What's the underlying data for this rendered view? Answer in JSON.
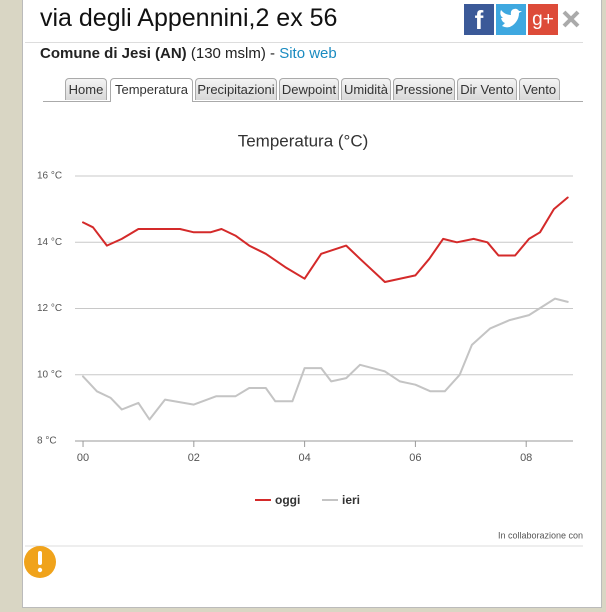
{
  "header": {
    "title": "via degli Appennini,2 ex 56",
    "place": "Comune di Jesi (AN)",
    "altitude": "(130 mslm) -",
    "link": "Sito web"
  },
  "share_icons": {
    "facebook": "f",
    "google": "g+"
  },
  "tabs": [
    "Home",
    "Temperatura",
    "Precipitazioni",
    "Dewpoint",
    "Umidità",
    "Pressione",
    "Dir Vento",
    "Vento"
  ],
  "active_tab": 1,
  "footer": "In collaborazione con",
  "chart_data": {
    "type": "line",
    "title": "Temperatura (°C)",
    "xlim": [
      -0.145,
      8.845
    ],
    "xticks": [
      {
        "value": 0,
        "label": "00"
      },
      {
        "value": 2,
        "label": "02"
      },
      {
        "value": 4,
        "label": "04"
      },
      {
        "value": 6,
        "label": "06"
      },
      {
        "value": 8,
        "label": "08"
      }
    ],
    "ylim": [
      8,
      16
    ],
    "yticks": [
      {
        "value": 8,
        "label": "8 °C"
      },
      {
        "value": 10,
        "label": "10 °C"
      },
      {
        "value": 12,
        "label": "12 °C"
      },
      {
        "value": 14,
        "label": "14 °C"
      },
      {
        "value": 16,
        "label": "16 °C"
      }
    ],
    "grid": true,
    "series": [
      {
        "name": "oggi",
        "color": "#d42a2a",
        "x": [
          0,
          0.18,
          0.43,
          0.7,
          1.0,
          1.75,
          2.0,
          2.3,
          2.5,
          2.75,
          3.0,
          3.3,
          3.65,
          4.0,
          4.3,
          4.75,
          5.0,
          5.45,
          6.0,
          6.25,
          6.5,
          6.75,
          7.05,
          7.3,
          7.5,
          7.8,
          8.05,
          8.25,
          8.5,
          8.75
        ],
        "values": [
          14.6,
          14.45,
          13.9,
          14.1,
          14.4,
          14.4,
          14.3,
          14.3,
          14.4,
          14.2,
          13.9,
          13.65,
          13.25,
          12.9,
          13.65,
          13.9,
          13.5,
          12.8,
          13.0,
          13.5,
          14.1,
          14.0,
          14.1,
          14.0,
          13.6,
          13.6,
          14.1,
          14.3,
          15.0,
          15.35
        ]
      },
      {
        "name": "ieri",
        "color": "#c4c4c4",
        "x": [
          0,
          0.25,
          0.5,
          0.7,
          1.0,
          1.2,
          1.48,
          2.0,
          2.4,
          2.75,
          3.0,
          3.3,
          3.47,
          3.78,
          4.0,
          4.3,
          4.48,
          4.75,
          5.0,
          5.45,
          5.72,
          6.0,
          6.27,
          6.53,
          6.8,
          7.02,
          7.35,
          7.7,
          8.05,
          8.52,
          8.75
        ],
        "values": [
          9.95,
          9.5,
          9.3,
          8.95,
          9.15,
          8.65,
          9.25,
          9.1,
          9.35,
          9.35,
          9.6,
          9.6,
          9.2,
          9.2,
          10.2,
          10.2,
          9.8,
          9.9,
          10.3,
          10.1,
          9.8,
          9.7,
          9.5,
          9.5,
          10.0,
          10.9,
          11.4,
          11.65,
          11.8,
          12.3,
          12.2
        ]
      }
    ]
  }
}
